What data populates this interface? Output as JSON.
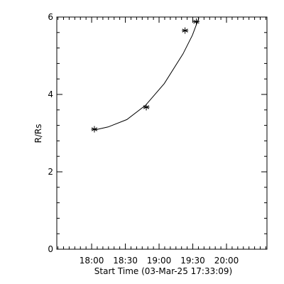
{
  "chart_data": {
    "type": "scatter",
    "title": "",
    "xlabel": "Start Time (03-Mar-25 17:33:09)",
    "ylabel": "R/Rs",
    "x_tick_labels": [
      "18:00",
      "18:30",
      "19:00",
      "19:30",
      "20:00"
    ],
    "x_tick_values": [
      1620,
      3420,
      5220,
      7020,
      8820
    ],
    "y_tick_labels": [
      "0",
      "2",
      "4",
      "6"
    ],
    "y_tick_values": [
      0,
      2,
      4,
      6
    ],
    "xlim": [
      -240,
      10980
    ],
    "ylim": [
      0,
      6
    ],
    "grid": false,
    "marker": "asterisk",
    "series": [
      {
        "x": [
          1767,
          4537,
          6607,
          7207
        ],
        "y": [
          3.1,
          3.67,
          5.65,
          5.88
        ]
      }
    ],
    "fit_curve": {
      "x": [
        1767,
        2500,
        3500,
        4500,
        5500,
        6500,
        7000,
        7350
      ],
      "y": [
        3.08,
        3.16,
        3.35,
        3.72,
        4.28,
        5.05,
        5.53,
        5.98
      ]
    }
  }
}
